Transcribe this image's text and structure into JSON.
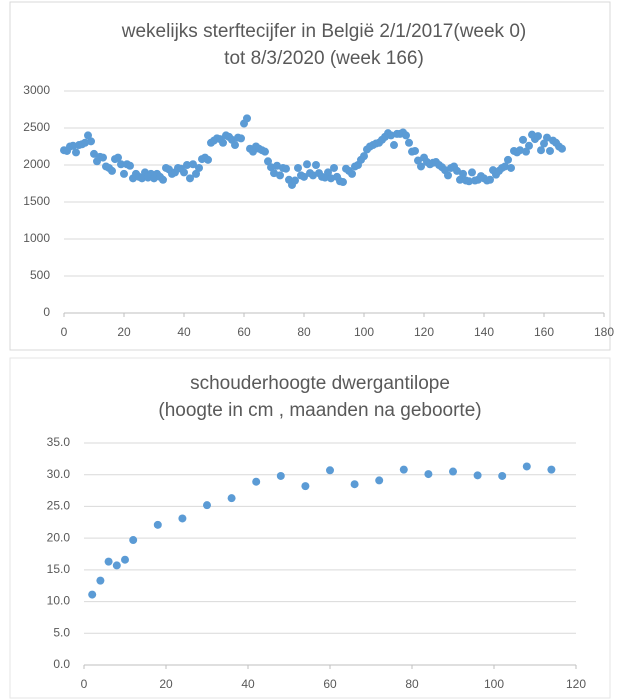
{
  "chart_data": [
    {
      "type": "scatter",
      "title": [
        "wekelijks sterftecijfer in België 2/1/2017(week 0)",
        "tot 8/3/2020 (week 166)"
      ],
      "color": "#5b9bd5",
      "grid": true,
      "xlim": [
        0,
        180
      ],
      "xticks": [
        0,
        20,
        40,
        60,
        80,
        100,
        120,
        140,
        160,
        180
      ],
      "ylim": [
        0,
        3000
      ],
      "yticks": [
        0,
        500,
        1000,
        1500,
        2000,
        2500,
        3000
      ],
      "x": [
        0,
        1,
        2,
        3,
        4,
        5,
        6,
        7,
        8,
        9,
        10,
        11,
        12,
        13,
        14,
        15,
        16,
        17,
        18,
        19,
        20,
        21,
        22,
        23,
        24,
        25,
        26,
        27,
        28,
        29,
        30,
        31,
        32,
        33,
        34,
        35,
        36,
        37,
        38,
        39,
        40,
        41,
        42,
        43,
        44,
        45,
        46,
        47,
        48,
        49,
        50,
        51,
        52,
        53,
        54,
        55,
        56,
        57,
        58,
        59,
        60,
        61,
        62,
        63,
        64,
        65,
        66,
        67,
        68,
        69,
        70,
        71,
        72,
        73,
        74,
        75,
        76,
        77,
        78,
        79,
        80,
        81,
        82,
        83,
        84,
        85,
        86,
        87,
        88,
        89,
        90,
        91,
        92,
        93,
        94,
        95,
        96,
        97,
        98,
        99,
        100,
        101,
        102,
        103,
        104,
        105,
        106,
        107,
        108,
        109,
        110,
        111,
        112,
        113,
        114,
        115,
        116,
        117,
        118,
        119,
        120,
        121,
        122,
        123,
        124,
        125,
        126,
        127,
        128,
        129,
        130,
        131,
        132,
        133,
        134,
        135,
        136,
        137,
        138,
        139,
        140,
        141,
        142,
        143,
        144,
        145,
        146,
        147,
        148,
        149,
        150,
        151,
        152,
        153,
        154,
        155,
        156,
        157,
        158,
        159,
        160,
        161,
        162,
        163,
        164,
        165,
        166
      ],
      "values": [
        2200,
        2190,
        2250,
        2260,
        2170,
        2270,
        2280,
        2300,
        2400,
        2320,
        2150,
        2050,
        2110,
        2100,
        1980,
        1960,
        1920,
        2080,
        2100,
        2010,
        1880,
        2010,
        1990,
        1820,
        1880,
        1840,
        1820,
        1900,
        1830,
        1880,
        1820,
        1880,
        1840,
        1800,
        1960,
        1940,
        1880,
        1900,
        1960,
        1950,
        1900,
        2000,
        1820,
        2010,
        1880,
        1960,
        2080,
        2100,
        2070,
        2300,
        2330,
        2360,
        2350,
        2300,
        2400,
        2380,
        2340,
        2270,
        2370,
        2360,
        2560,
        2630,
        2220,
        2180,
        2250,
        2220,
        2200,
        2180,
        2050,
        1970,
        1890,
        1990,
        1860,
        1960,
        1950,
        1800,
        1730,
        1790,
        1960,
        1860,
        1840,
        2010,
        1890,
        1860,
        2000,
        1890,
        1840,
        1830,
        1900,
        1820,
        1960,
        1840,
        1780,
        1770,
        1950,
        1920,
        1880,
        1980,
        2000,
        2070,
        2120,
        2210,
        2250,
        2270,
        2290,
        2300,
        2340,
        2380,
        2430,
        2400,
        2270,
        2420,
        2420,
        2440,
        2400,
        2300,
        2180,
        2190,
        2060,
        1980,
        2100,
        2040,
        2010,
        2030,
        2040,
        2000,
        1970,
        1930,
        1860,
        1960,
        1980,
        1920,
        1800,
        1880,
        1790,
        1780,
        1900,
        1790,
        1800,
        1850,
        1820,
        1790,
        1800,
        1930,
        1870,
        1920,
        1960,
        1980,
        2070,
        1960,
        2190,
        2170,
        2200,
        2340,
        2180,
        2260,
        2410,
        2350,
        2390,
        2200,
        2290,
        2370,
        2190,
        2330,
        2300,
        2250,
        2220
      ]
    },
    {
      "type": "scatter",
      "title": [
        "schouderhoogte dwergantilope",
        "(hoogte in cm , maanden na geboorte)"
      ],
      "color": "#5b9bd5",
      "grid": true,
      "xlim": [
        0,
        120
      ],
      "xticks": [
        0,
        20,
        40,
        60,
        80,
        100,
        120
      ],
      "ylim": [
        0,
        35
      ],
      "yticks": [
        {
          "value": 0,
          "label": "0.0"
        },
        {
          "value": 5,
          "label": "5.0"
        },
        {
          "value": 10,
          "label": "10.0"
        },
        {
          "value": 15,
          "label": "15.0"
        },
        {
          "value": 20,
          "label": "20.0"
        },
        {
          "value": 25,
          "label": "25.0"
        },
        {
          "value": 30,
          "label": "30.0"
        },
        {
          "value": 35,
          "label": "35.0"
        }
      ],
      "x": [
        2,
        4,
        6,
        8,
        10,
        12,
        18,
        24,
        30,
        36,
        42,
        48,
        54,
        60,
        66,
        72,
        78,
        84,
        90,
        96,
        102,
        108,
        114
      ],
      "values": [
        11.1,
        13.3,
        16.3,
        15.7,
        16.6,
        19.7,
        22.1,
        23.1,
        25.2,
        26.3,
        28.9,
        29.8,
        28.2,
        30.7,
        28.5,
        29.1,
        30.8,
        30.1,
        30.5,
        29.9,
        29.8,
        31.3,
        30.8
      ]
    }
  ]
}
